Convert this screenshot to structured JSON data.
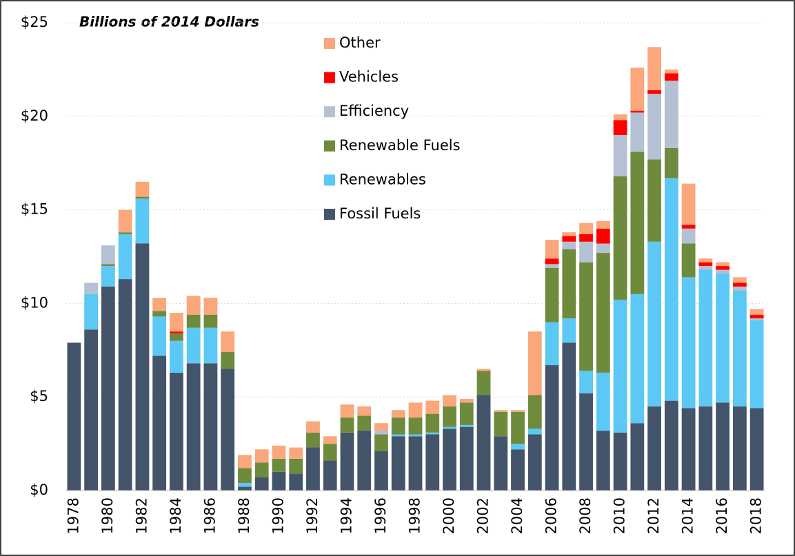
{
  "chart_data": {
    "type": "stacked-bar",
    "title": "Billions of 2014 Dollars",
    "categories": [
      "1978",
      null,
      "1980",
      null,
      "1982",
      null,
      "1984",
      null,
      "1986",
      null,
      "1988",
      null,
      "1990",
      null,
      "1992",
      null,
      "1994",
      null,
      "1996",
      null,
      "1998",
      null,
      "2000",
      null,
      "2002",
      null,
      "2004",
      null,
      "2006",
      null,
      "2008",
      null,
      "2010",
      null,
      "2012",
      null,
      "2014",
      null,
      "2016",
      null,
      "2018"
    ],
    "series": [
      {
        "name": "Fossil Fuels",
        "color": "#44546a",
        "values": [
          7.9,
          8.6,
          10.9,
          11.3,
          13.2,
          7.2,
          6.3,
          6.8,
          6.8,
          6.5,
          0.2,
          0.7,
          1.0,
          0.9,
          2.3,
          1.6,
          3.1,
          3.2,
          2.1,
          2.9,
          2.9,
          3.0,
          3.3,
          3.4,
          5.1,
          2.9,
          2.2,
          3.0,
          6.7,
          7.9,
          5.2,
          3.2,
          3.1,
          3.6,
          4.5,
          4.8,
          4.4,
          4.5,
          4.7,
          4.5,
          4.4
        ]
      },
      {
        "name": "Renewables",
        "color": "#5bc8f5",
        "values": [
          0,
          1.9,
          1.1,
          2.4,
          2.4,
          2.1,
          1.7,
          1.9,
          1.9,
          0,
          0.2,
          0,
          0,
          0,
          0,
          0,
          0,
          0,
          0,
          0.1,
          0.1,
          0.1,
          0.1,
          0.1,
          0,
          0,
          0.3,
          0.3,
          2.3,
          1.3,
          1.2,
          3.1,
          7.1,
          6.9,
          8.8,
          11.9,
          7.0,
          7.3,
          6.9,
          6.2,
          4.7
        ]
      },
      {
        "name": "Renewable Fuels",
        "color": "#6e8b3d",
        "values": [
          0,
          0,
          0.1,
          0.1,
          0.1,
          0.3,
          0.4,
          0.7,
          0.7,
          0.9,
          0.8,
          0.8,
          0.7,
          0.8,
          0.8,
          0.9,
          0.8,
          0.8,
          0.9,
          0.9,
          0.9,
          1.0,
          1.1,
          1.2,
          1.3,
          1.3,
          1.7,
          1.8,
          2.9,
          3.7,
          5.8,
          6.4,
          6.6,
          7.6,
          4.4,
          1.6,
          1.8,
          0,
          0,
          0,
          0
        ]
      },
      {
        "name": "Efficiency",
        "color": "#b4c0d4",
        "values": [
          0,
          0.6,
          1.0,
          0,
          0,
          0,
          0,
          0,
          0,
          0,
          0,
          0,
          0,
          0,
          0,
          0,
          0,
          0,
          0.2,
          0,
          0,
          0,
          0,
          0,
          0,
          0,
          0,
          0,
          0.2,
          0.4,
          1.1,
          0.5,
          2.2,
          2.1,
          3.5,
          3.6,
          0.8,
          0.2,
          0.2,
          0.2,
          0.1
        ]
      },
      {
        "name": "Vehicles",
        "color": "#ff0000",
        "values": [
          0,
          0,
          0,
          0,
          0,
          0,
          0.1,
          0,
          0,
          0,
          0,
          0,
          0,
          0,
          0,
          0,
          0,
          0,
          0,
          0,
          0,
          0,
          0,
          0,
          0,
          0,
          0,
          0,
          0.3,
          0.3,
          0.4,
          0.8,
          0.8,
          0.1,
          0.2,
          0.4,
          0.2,
          0.2,
          0.2,
          0.2,
          0.2
        ]
      },
      {
        "name": "Other",
        "color": "#f9a77b",
        "values": [
          0,
          0,
          0,
          1.2,
          0.8,
          0.7,
          1.0,
          1.0,
          0.9,
          1.1,
          0.7,
          0.7,
          0.7,
          0.6,
          0.6,
          0.4,
          0.7,
          0.5,
          0.4,
          0.4,
          0.8,
          0.7,
          0.6,
          0.2,
          0.1,
          0.1,
          0.1,
          3.4,
          1.0,
          0.2,
          0.6,
          0.4,
          0.3,
          2.3,
          2.3,
          0.2,
          2.2,
          0.2,
          0.2,
          0.3,
          0.3
        ]
      }
    ],
    "ylim": [
      0,
      25
    ],
    "yticks": [
      {
        "value": 0,
        "label": "$0"
      },
      {
        "value": 5,
        "label": "$5"
      },
      {
        "value": 10,
        "label": "$10"
      },
      {
        "value": 15,
        "label": "$15"
      },
      {
        "value": 20,
        "label": "$20"
      },
      {
        "value": 25,
        "label": "$25"
      }
    ],
    "grid": true,
    "legend": "top-center"
  }
}
